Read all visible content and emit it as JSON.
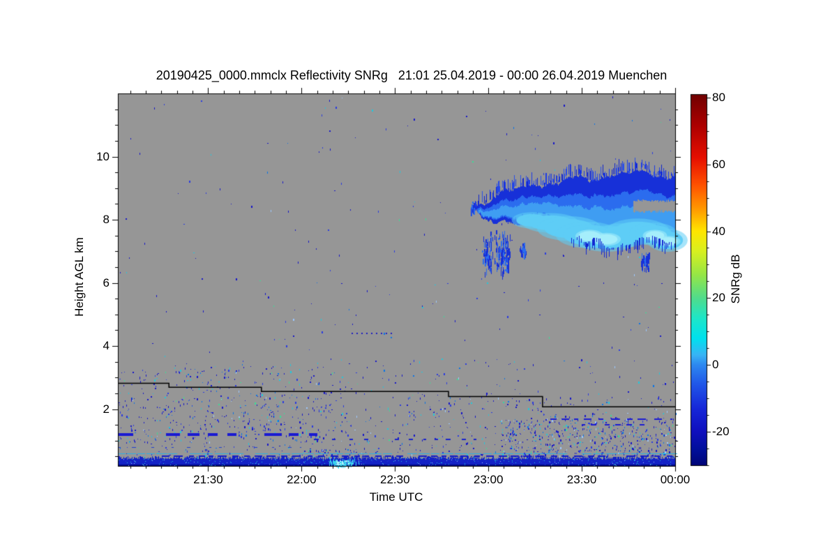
{
  "chart_data": {
    "type": "heatmap",
    "title": "20190425_0000.mmclx Reflectivity SNRg   21:01 25.04.2019 - 00:00 26.04.2019 Muenchen",
    "xlabel": "Time UTC",
    "ylabel": "Height AGL km",
    "background_color": "#969696",
    "x_axis": {
      "start_minute": 1,
      "end_minute": 180,
      "minor_step_min": 5,
      "major_ticks": [
        {
          "min": 30,
          "label": "21:30"
        },
        {
          "min": 60,
          "label": "22:00"
        },
        {
          "min": 90,
          "label": "22:30"
        },
        {
          "min": 120,
          "label": "23:00"
        },
        {
          "min": 150,
          "label": "23:30"
        },
        {
          "min": 180,
          "label": "00:00"
        }
      ]
    },
    "y_axis": {
      "range_km": [
        0.2,
        12.0
      ],
      "minor_step_km": 0.5,
      "major_ticks": [
        {
          "km": 2,
          "label": "2"
        },
        {
          "km": 4,
          "label": "4"
        },
        {
          "km": 6,
          "label": "6"
        },
        {
          "km": 8,
          "label": "8"
        },
        {
          "km": 10,
          "label": "10"
        }
      ]
    },
    "colorbar": {
      "label": "SNRg dB",
      "range_db": [
        -30,
        81
      ],
      "minor_step_db": 5,
      "major_ticks": [
        {
          "db": 80,
          "label": "80"
        },
        {
          "db": 60,
          "label": "60"
        },
        {
          "db": 40,
          "label": "40"
        },
        {
          "db": 20,
          "label": "20"
        },
        {
          "db": 0,
          "label": "0"
        },
        {
          "db": -20,
          "label": "-20"
        }
      ],
      "stops": [
        [
          81,
          "#700000"
        ],
        [
          72,
          "#aa0000"
        ],
        [
          62,
          "#e60f00"
        ],
        [
          54,
          "#ff5000"
        ],
        [
          46,
          "#ffa000"
        ],
        [
          40,
          "#ffe600"
        ],
        [
          34,
          "#d8f020"
        ],
        [
          27,
          "#96e646"
        ],
        [
          20,
          "#50dc8c"
        ],
        [
          14,
          "#1ee6c8"
        ],
        [
          8,
          "#00e1ee"
        ],
        [
          3,
          "#38b4f5"
        ],
        [
          0,
          "#2d88f0"
        ],
        [
          -6,
          "#2055e8"
        ],
        [
          -13,
          "#1627d8"
        ],
        [
          -20,
          "#0f0fbe"
        ],
        [
          -26,
          "#000f96"
        ],
        [
          -30,
          "#000578"
        ]
      ]
    },
    "step_line": {
      "color": "#000000",
      "points_min_km": [
        [
          1,
          2.82
        ],
        [
          17.4,
          2.82
        ],
        [
          17.4,
          2.69
        ],
        [
          47.1,
          2.69
        ],
        [
          47.1,
          2.56
        ],
        [
          107.2,
          2.56
        ],
        [
          107.2,
          2.4
        ],
        [
          137.4,
          2.4
        ],
        [
          137.4,
          2.07
        ],
        [
          180,
          2.07
        ]
      ]
    },
    "cloud": {
      "t_range": [
        115.8,
        180
      ],
      "edge_color": "#1730d8",
      "mid_color": "#2b6cee",
      "inner_color": "#3f9df2",
      "bright_color": "#5ecdf6",
      "brightest_color": "#a5eefb",
      "top_km": [
        [
          115.8,
          8.4
        ],
        [
          120,
          8.66
        ],
        [
          124.4,
          8.97
        ],
        [
          129,
          8.9
        ],
        [
          133.4,
          9.0
        ],
        [
          138,
          9.1
        ],
        [
          142.3,
          9.22
        ],
        [
          147,
          9.26
        ],
        [
          151.3,
          9.3
        ],
        [
          156,
          9.34
        ],
        [
          160.2,
          9.4
        ],
        [
          165,
          9.43
        ],
        [
          169.2,
          9.45
        ],
        [
          173,
          9.3
        ],
        [
          176,
          9.4
        ],
        [
          180,
          9.36
        ]
      ],
      "bot_km": [
        [
          115.8,
          8.28
        ],
        [
          120,
          8.09
        ],
        [
          124.4,
          7.9
        ],
        [
          129,
          7.97
        ],
        [
          133.4,
          8.02
        ],
        [
          138,
          7.85
        ],
        [
          142.3,
          7.64
        ],
        [
          147,
          7.5
        ],
        [
          151.3,
          7.32
        ],
        [
          156,
          7.26
        ],
        [
          160.2,
          7.2
        ],
        [
          165,
          7.32
        ],
        [
          169.2,
          7.42
        ],
        [
          173,
          7.3
        ],
        [
          176,
          7.18
        ],
        [
          180,
          7.07
        ]
      ],
      "gap": {
        "t0": 166.5,
        "km_low": 8.26,
        "km_high": 8.6
      },
      "bright_cores": [
        [
          134,
          7.98,
          5,
          0.2
        ],
        [
          140,
          7.9,
          7,
          0.24
        ],
        [
          146,
          7.72,
          8,
          0.3
        ],
        [
          152,
          7.52,
          8,
          0.32
        ],
        [
          158,
          7.4,
          8,
          0.32
        ],
        [
          163,
          7.5,
          7,
          0.3
        ],
        [
          168,
          7.62,
          8,
          0.32
        ],
        [
          173,
          7.55,
          6,
          0.28
        ],
        [
          177.5,
          7.35,
          5,
          0.28
        ]
      ],
      "brightest_cores": [
        [
          152.5,
          7.48,
          3.5,
          0.16
        ],
        [
          158,
          7.38,
          3.5,
          0.16
        ],
        [
          173.5,
          7.5,
          3,
          0.14
        ],
        [
          177.8,
          7.32,
          3,
          0.13
        ]
      ],
      "fragments": [
        {
          "t": 114.8,
          "km": 8.45,
          "ht": 0.7,
          "hkm": 0.18,
          "n": 14
        },
        {
          "t": 119.5,
          "km": 7.0,
          "ht": 1.9,
          "hkm": 0.7,
          "n": 70
        },
        {
          "t": 124.5,
          "km": 7.0,
          "ht": 2.8,
          "hkm": 0.72,
          "n": 120
        },
        {
          "t": 131.0,
          "km": 7.1,
          "ht": 1.3,
          "hkm": 0.3,
          "n": 32
        },
        {
          "t": 170.5,
          "km": 6.75,
          "ht": 1.5,
          "hkm": 0.3,
          "n": 42
        }
      ]
    },
    "surface_band": {
      "km_range": [
        0.22,
        0.46
      ],
      "base_color": "#1322c6",
      "dark_bottom_color": "#000c8a",
      "speckle_count": 430,
      "bright_blob": {
        "t": 73,
        "half_t": 7,
        "color": "#38d2ee",
        "core_color": "#aaf2fb"
      }
    },
    "cyan_line": {
      "km": 0.6,
      "color": "#28b0e6"
    },
    "dotted_line": {
      "km": 4.43,
      "t0": 76,
      "t1": 90,
      "color": "#2020c0"
    },
    "dash_rows": [
      {
        "km": 1.2,
        "t0": 1,
        "t1": 65,
        "thickness": 4,
        "dash": 17,
        "gap": 11,
        "color": "#1a1ad2"
      },
      {
        "km": 1.68,
        "t0": 140,
        "t1": 179,
        "thickness": 2,
        "dash": 8,
        "gap": 10,
        "color": "#1a1ad2"
      },
      {
        "km": 1.5,
        "t0": 150,
        "t1": 172,
        "thickness": 2,
        "dash": 7,
        "gap": 9,
        "color": "#1a1ad2"
      },
      {
        "km": 1.04,
        "t0": 64,
        "t1": 120,
        "thickness": 2,
        "dash": 5,
        "gap": 16,
        "color": "#1822cc"
      },
      {
        "km": 0.79,
        "t0": 1,
        "t1": 60,
        "thickness": 1,
        "dash": 4,
        "gap": 18,
        "color": "#2040d0"
      },
      {
        "km": 0.52,
        "t0": 12,
        "t1": 179,
        "thickness": 2,
        "dash": 9,
        "gap": 7,
        "color": "#141ac8"
      }
    ],
    "noise": {
      "seed": 1337,
      "dot_colors": [
        [
          "#1616c8",
          0.48
        ],
        [
          "#2a3ae0",
          0.2
        ],
        [
          "#0a74e6",
          0.1
        ],
        [
          "#22c8dc",
          0.12
        ],
        [
          "#3cdc96",
          0.05
        ],
        [
          "#9cc8ff",
          0.05
        ]
      ],
      "regions": [
        {
          "name": "sparse-upper",
          "t": [
            1,
            180
          ],
          "km": [
            0.2,
            12.0
          ],
          "count": 280
        },
        {
          "name": "low-level",
          "t": [
            1,
            180
          ],
          "km": [
            0.3,
            2.4
          ],
          "count": 650
        },
        {
          "name": "lower-right-dense",
          "t": [
            124,
            180
          ],
          "km": [
            0.3,
            1.7
          ],
          "count": 520
        },
        {
          "name": "left-mid",
          "t": [
            1,
            75
          ],
          "km": [
            1.0,
            3.4
          ],
          "count": 260
        },
        {
          "name": "mid-band",
          "t": [
            1,
            180
          ],
          "km": [
            2.2,
            3.6
          ],
          "count": 140
        },
        {
          "name": "band-halo",
          "t": [
            60,
            80
          ],
          "km": [
            0.45,
            0.75
          ],
          "count": 60
        }
      ]
    }
  }
}
